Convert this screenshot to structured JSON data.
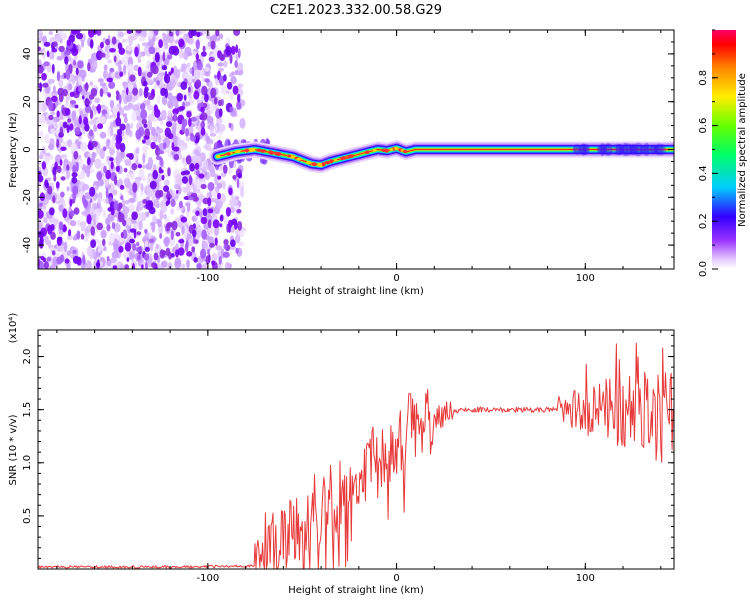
{
  "title": "C2E1.2023.332.00.58.G29",
  "chart_data": [
    {
      "type": "heatmap",
      "xlabel": "Height of straight line (km)",
      "ylabel": "Frequency (Hz)",
      "xlim": [
        -190,
        147
      ],
      "ylim": [
        -50,
        50
      ],
      "x_ticks": [
        "-100",
        "0",
        "100"
      ],
      "y_ticks": [
        "-40",
        "-20",
        "0",
        "20",
        "40"
      ],
      "colorbar": {
        "label": "Normalized spectral amplitude",
        "range": [
          0,
          1
        ],
        "ticks": [
          "0.0",
          "0.2",
          "0.4",
          "0.6",
          "0.8"
        ],
        "colors": [
          "#ffffff",
          "#d9b3ff",
          "#8000ff",
          "#0000ff",
          "#00ffff",
          "#00ff00",
          "#ffff00",
          "#ff8000",
          "#ff0000",
          "#ff0080"
        ]
      },
      "noise_region_x": [
        -190,
        -83
      ],
      "signal_track": {
        "x": [
          -95,
          -85,
          -75,
          -65,
          -55,
          -45,
          -40,
          -35,
          -25,
          -15,
          -10,
          -5,
          0,
          5,
          10,
          20,
          40,
          60,
          80,
          100,
          120,
          147
        ],
        "y": [
          -3,
          -1,
          0,
          -1.5,
          -3,
          -6,
          -6.5,
          -5,
          -3,
          -1,
          0,
          -0.5,
          0.5,
          -1,
          0,
          0,
          0,
          0,
          0,
          0,
          0,
          0
        ]
      }
    },
    {
      "type": "line",
      "xlabel": "Height of straight line (km)",
      "ylabel": "SNR (10 * v/v)",
      "y_multiplier": "(x10⁴)",
      "xlim": [
        -190,
        147
      ],
      "ylim": [
        0,
        2.25
      ],
      "x_ticks": [
        "-100",
        "0",
        "100"
      ],
      "y_ticks": [
        "0.5",
        "1.0",
        "1.5",
        "2.0"
      ],
      "line_color": "#e8393a",
      "series": [
        {
          "x": [
            -190,
            -150,
            -110,
            -75,
            -70,
            -60,
            -50,
            -40,
            -30,
            -20,
            -10,
            0,
            10,
            20,
            30,
            40,
            60,
            80,
            90,
            100,
            110,
            120,
            130,
            140,
            147
          ],
          "y": [
            0.02,
            0.02,
            0.02,
            0.03,
            0.2,
            0.3,
            0.4,
            0.55,
            0.7,
            0.85,
            1.0,
            1.15,
            1.3,
            1.42,
            1.48,
            1.5,
            1.5,
            1.5,
            1.5,
            1.48,
            1.5,
            1.45,
            1.45,
            1.4,
            1.4
          ]
        }
      ]
    }
  ]
}
